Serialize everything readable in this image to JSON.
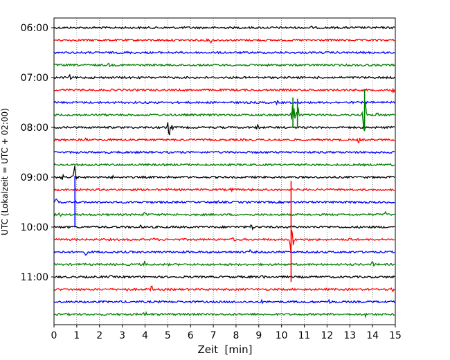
{
  "chart_data": {
    "type": "line",
    "title": "",
    "xlabel": "Zeit  [min]",
    "ylabel": "UTC (Lokalzeit = UTC + 02:00)",
    "xlim": [
      0,
      15
    ],
    "x_ticks": [
      0,
      1,
      2,
      3,
      4,
      5,
      6,
      7,
      8,
      9,
      10,
      11,
      12,
      13,
      14,
      15
    ],
    "x_tick_labels": [
      "0",
      "1",
      "2",
      "3",
      "4",
      "5",
      "6",
      "7",
      "8",
      "9",
      "10",
      "11",
      "12",
      "13",
      "14",
      "15"
    ],
    "y_tick_labels": [
      "06:00",
      "07:00",
      "08:00",
      "09:00",
      "10:00",
      "11:00"
    ],
    "y_tick_rows": [
      0,
      4,
      8,
      12,
      16,
      20
    ],
    "grid": {
      "x": true,
      "y": false
    },
    "legend": "none",
    "row_colors": [
      "#000000",
      "#ff0000",
      "#0000ff",
      "#008000"
    ],
    "rows": [
      {
        "events": [
          [
            11.3,
            3
          ]
        ]
      },
      {
        "events": [
          [
            3.0,
            4
          ],
          [
            6.9,
            5
          ]
        ]
      },
      {
        "events": [
          [
            3.2,
            3
          ],
          [
            4.2,
            2
          ]
        ]
      },
      {
        "events": [
          [
            2.4,
            4
          ],
          [
            13.6,
            4
          ]
        ]
      },
      {
        "events": [
          [
            0.7,
            4
          ]
        ]
      },
      {
        "events": [
          [
            4.4,
            3
          ],
          [
            6.6,
            3
          ],
          [
            14.9,
            5
          ]
        ]
      },
      {
        "events": [
          [
            9.8,
            3
          ],
          [
            13.4,
            2
          ]
        ]
      },
      {
        "events": [
          [
            3.4,
            4
          ],
          [
            10.5,
            22
          ],
          [
            10.7,
            22
          ],
          [
            13.65,
            30
          ],
          [
            14.2,
            4
          ]
        ]
      },
      {
        "events": [
          [
            5.05,
            14
          ],
          [
            5.15,
            10
          ],
          [
            0.8,
            4
          ],
          [
            8.95,
            5
          ]
        ]
      },
      {
        "events": [
          [
            1.4,
            4
          ],
          [
            3.7,
            4
          ],
          [
            9.9,
            3
          ],
          [
            13.4,
            5
          ]
        ]
      },
      {
        "events": [
          [
            5.6,
            2
          ]
        ]
      },
      {
        "events": [
          [
            8.8,
            2
          ],
          [
            14.8,
            4
          ]
        ]
      },
      {
        "events": [
          [
            0.35,
            6
          ],
          [
            0.9,
            20
          ],
          [
            2.6,
            3
          ],
          [
            11.4,
            3
          ],
          [
            14.8,
            3
          ]
        ]
      },
      {
        "events": [
          [
            7.8,
            4
          ],
          [
            13.0,
            3
          ]
        ]
      },
      {
        "events": [
          [
            0.1,
            6
          ],
          [
            0.95,
            3
          ],
          [
            7.2,
            3
          ]
        ]
      },
      {
        "events": [
          [
            0.25,
            4
          ],
          [
            4.0,
            6
          ],
          [
            14.55,
            6
          ]
        ]
      },
      {
        "events": [
          [
            3.8,
            3
          ],
          [
            8.7,
            6
          ],
          [
            10.5,
            4
          ]
        ]
      },
      {
        "events": [
          [
            4.4,
            4
          ],
          [
            7.9,
            5
          ],
          [
            10.45,
            28
          ],
          [
            13.05,
            6
          ]
        ]
      },
      {
        "events": [
          [
            1.4,
            5
          ],
          [
            8.6,
            4
          ]
        ]
      },
      {
        "events": [
          [
            4.0,
            6
          ],
          [
            14.0,
            5
          ]
        ]
      },
      {
        "events": [
          [
            9.2,
            6
          ],
          [
            2.5,
            3
          ]
        ]
      },
      {
        "events": [
          [
            3.2,
            4
          ],
          [
            4.3,
            6
          ],
          [
            14.85,
            6
          ]
        ]
      },
      {
        "events": [
          [
            9.1,
            4
          ],
          [
            12.1,
            4
          ]
        ]
      },
      {
        "events": [
          [
            4.0,
            6
          ],
          [
            13.7,
            4
          ]
        ]
      }
    ],
    "long_spikes": [
      {
        "x": 10.42,
        "from_row": 12.3,
        "to_row": 20.4,
        "color": "#ff0000"
      },
      {
        "x": 0.92,
        "from_row": 11.9,
        "to_row": 16.0,
        "color": "#0000ff"
      },
      {
        "x": 13.65,
        "from_row": 5.0,
        "to_row": 8.3,
        "color": "#008000"
      },
      {
        "x": 10.5,
        "from_row": 5.6,
        "to_row": 8.0,
        "color": "#008000"
      },
      {
        "x": 10.7,
        "from_row": 5.7,
        "to_row": 8.0,
        "color": "#008000"
      }
    ]
  }
}
